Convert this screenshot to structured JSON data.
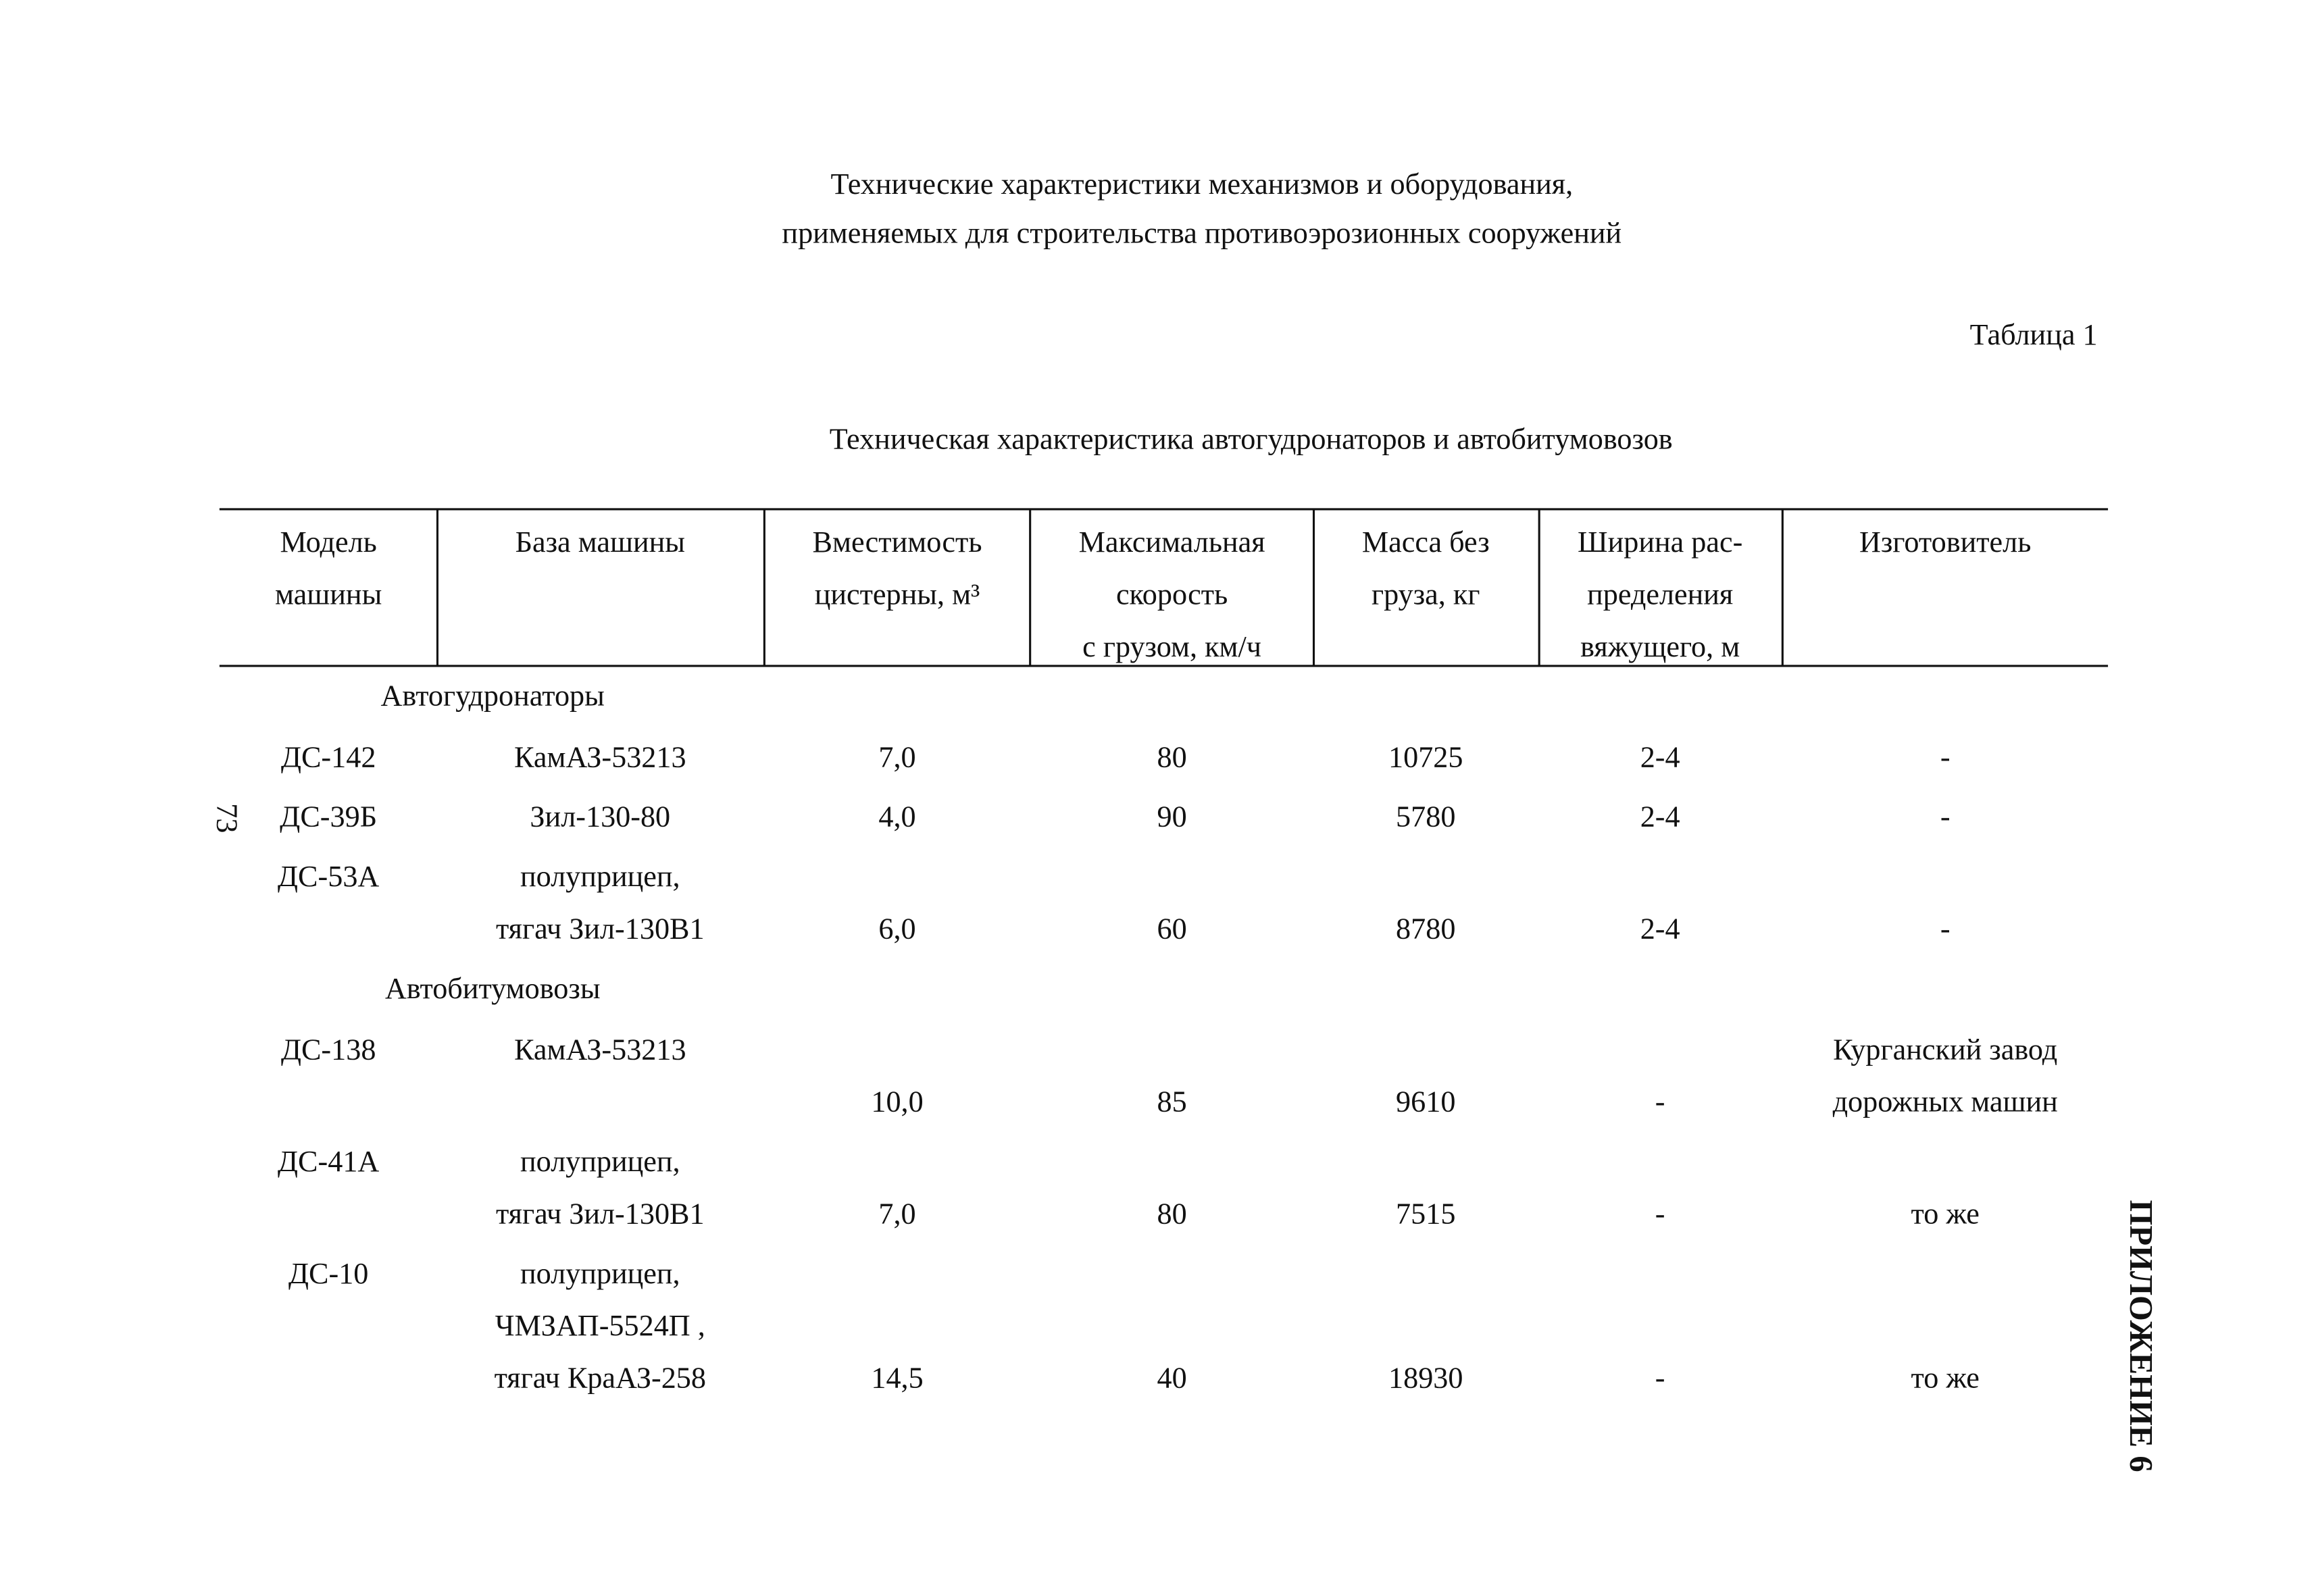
{
  "header": {
    "title_lines": [
      "Технические характеристики механизмов и оборудования,",
      "применяемых для строительства противоэрозионных сооружений"
    ],
    "table_label": "Таблица 1",
    "table_title": "Техническая характеристика автогудронаторов и автобитумовозов"
  },
  "page_number": "73",
  "appendix": "ПРИЛОЖЕНИЕ 6",
  "table": {
    "headers": [
      [
        "Модель",
        "машины"
      ],
      [
        "База машины"
      ],
      [
        "Вместимость",
        "цистерны, м³"
      ],
      [
        "Максимальная",
        "скорость",
        "с грузом, км/ч"
      ],
      [
        "Масса без",
        "груза, кг"
      ],
      [
        "Ширина рас-",
        "пределения",
        "вяжущего, м"
      ],
      [
        "Изготовитель"
      ]
    ],
    "groups": [
      {
        "name": "Автогудронаторы",
        "rows": [
          {
            "model": "ДС-142",
            "base": [
              "КамАЗ-53213"
            ],
            "capacity": "7,0",
            "speed": "80",
            "mass": "10725",
            "width": "2-4",
            "maker": [
              "-"
            ]
          },
          {
            "model": "ДС-39Б",
            "base": [
              "Зил-130-80"
            ],
            "capacity": "4,0",
            "speed": "90",
            "mass": "5780",
            "width": "2-4",
            "maker": [
              "-"
            ]
          },
          {
            "model": "ДС-53А",
            "base": [
              "полуприцеп,",
              "тягач Зил-130В1"
            ],
            "capacity": "6,0",
            "speed": "60",
            "mass": "8780",
            "width": "2-4",
            "maker": [
              "-"
            ]
          }
        ]
      },
      {
        "name": "Автобитумовозы",
        "rows": [
          {
            "model": "ДС-138",
            "base": [
              "КамАЗ-53213"
            ],
            "capacity": "10,0",
            "speed": "85",
            "mass": "9610",
            "width": "-",
            "maker": [
              "Курганский завод",
              "дорожных машин"
            ]
          },
          {
            "model": "ДС-41А",
            "base": [
              "полуприцеп,",
              "тягач Зил-130В1"
            ],
            "capacity": "7,0",
            "speed": "80",
            "mass": "7515",
            "width": "-",
            "maker": [
              "то же"
            ]
          },
          {
            "model": "ДС-10",
            "base": [
              "полуприцеп,",
              "ЧМЗАП-5524П ,",
              "тягач КраАЗ-258"
            ],
            "capacity": "14,5",
            "speed": "40",
            "mass": "18930",
            "width": "-",
            "maker": [
              "то же"
            ]
          }
        ]
      }
    ]
  }
}
